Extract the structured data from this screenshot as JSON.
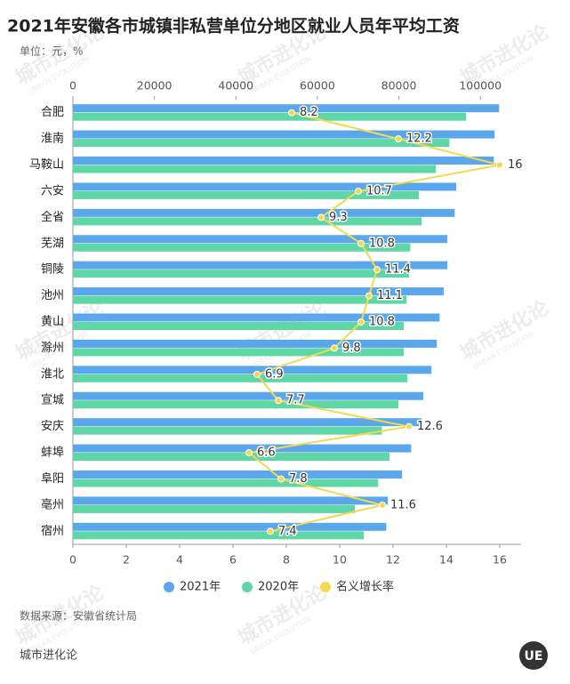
{
  "chart_data": {
    "type": "bar",
    "orientation": "horizontal",
    "title": "2021年安徽各市城镇非私营单位分地区就业人员年平均工资",
    "subtitle": "单位：元，%",
    "categories": [
      "合肥",
      "淮南",
      "马鞍山",
      "六安",
      "全省",
      "芜湖",
      "铜陵",
      "池州",
      "黄山",
      "滁州",
      "淮北",
      "宣城",
      "安庆",
      "蚌埠",
      "阜阳",
      "亳州",
      "宿州"
    ],
    "series": [
      {
        "name": "2021年",
        "color": "#5aa7ec",
        "values": [
          104600,
          103500,
          103300,
          94100,
          93700,
          91900,
          91900,
          91000,
          90000,
          89300,
          88000,
          86000,
          85600,
          83000,
          80800,
          77300,
          76900
        ]
      },
      {
        "name": "2020年",
        "color": "#5fd6a6",
        "values": [
          96500,
          92400,
          89100,
          84900,
          85600,
          82800,
          82500,
          81900,
          81200,
          81200,
          82100,
          79900,
          75800,
          77700,
          74900,
          69200,
          71400
        ]
      },
      {
        "name": "名义增长率",
        "type": "line",
        "axis": "x2",
        "color": "#f4d94f",
        "values": [
          8.2,
          12.2,
          16,
          10.7,
          9.3,
          10.8,
          11.4,
          11.1,
          10.8,
          9.8,
          6.9,
          7.7,
          12.6,
          6.6,
          7.8,
          11.6,
          7.4
        ]
      }
    ],
    "xlim": [
      0,
      110000
    ],
    "xticks": [
      0,
      20000,
      40000,
      60000,
      80000,
      100000
    ],
    "x2lim": [
      0,
      16.8
    ],
    "x2ticks": [
      0,
      2,
      4,
      6,
      8,
      10,
      12,
      14,
      16
    ],
    "grid": false,
    "legend": "bottom",
    "source": "数据来源：安徽省统计局",
    "brand": "城市进化论",
    "logo_text": "UE",
    "watermark": [
      "城市进化论",
      "URBAN EVOLUTION"
    ]
  }
}
